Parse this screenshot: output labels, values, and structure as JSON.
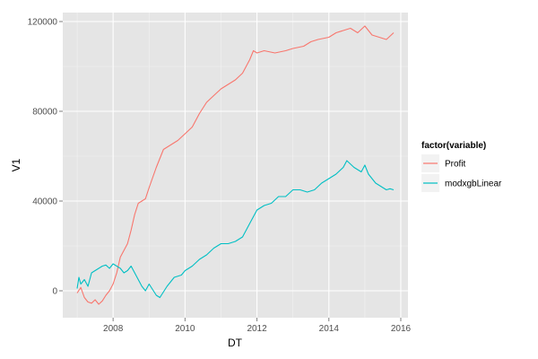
{
  "chart_data": {
    "type": "line",
    "xlabel": "DT",
    "ylabel": "V1",
    "xlim": [
      2006.6,
      2016.2
    ],
    "ylim": [
      -12000,
      124000
    ],
    "x_ticks": [
      2008,
      2010,
      2012,
      2014,
      2016
    ],
    "x_tick_labels": [
      "2008",
      "2010",
      "2012",
      "2014",
      "2016"
    ],
    "y_ticks": [
      0,
      40000,
      80000,
      120000
    ],
    "y_tick_labels": [
      "0",
      "40000",
      "80000",
      "120000"
    ],
    "grid": true,
    "background": "#e5e5e5",
    "legend": {
      "title": "factor(variable)",
      "placement": "right"
    },
    "series": [
      {
        "name": "Profit",
        "color": "#f8766d",
        "x": [
          2007.0,
          2007.1,
          2007.2,
          2007.3,
          2007.4,
          2007.5,
          2007.6,
          2007.7,
          2007.8,
          2007.9,
          2008.0,
          2008.1,
          2008.2,
          2008.3,
          2008.4,
          2008.5,
          2008.6,
          2008.7,
          2008.8,
          2008.9,
          2009.0,
          2009.2,
          2009.4,
          2009.6,
          2009.8,
          2010.0,
          2010.2,
          2010.4,
          2010.6,
          2010.8,
          2011.0,
          2011.2,
          2011.4,
          2011.6,
          2011.8,
          2011.9,
          2012.0,
          2012.2,
          2012.5,
          2012.8,
          2013.0,
          2013.3,
          2013.5,
          2013.7,
          2014.0,
          2014.2,
          2014.4,
          2014.6,
          2014.8,
          2015.0,
          2015.2,
          2015.4,
          2015.6,
          2015.8
        ],
        "y": [
          -1000,
          1500,
          -3000,
          -5000,
          -5500,
          -4000,
          -6000,
          -4500,
          -2000,
          0,
          3000,
          8000,
          15000,
          18000,
          21000,
          27000,
          34000,
          39000,
          40000,
          41000,
          46000,
          55000,
          63000,
          65000,
          67000,
          70000,
          73000,
          79000,
          84000,
          87000,
          90000,
          92000,
          94000,
          97000,
          103000,
          107000,
          106000,
          107000,
          106000,
          107000,
          108000,
          109000,
          111000,
          112000,
          113000,
          115000,
          116000,
          117000,
          115000,
          118000,
          114000,
          113000,
          112000,
          115000
        ]
      },
      {
        "name": "modxgbLinear",
        "color": "#00bfc4",
        "x": [
          2007.0,
          2007.05,
          2007.1,
          2007.2,
          2007.3,
          2007.4,
          2007.5,
          2007.6,
          2007.7,
          2007.8,
          2007.9,
          2008.0,
          2008.1,
          2008.2,
          2008.3,
          2008.4,
          2008.5,
          2008.6,
          2008.7,
          2008.8,
          2008.9,
          2009.0,
          2009.2,
          2009.3,
          2009.5,
          2009.7,
          2009.9,
          2010.0,
          2010.2,
          2010.4,
          2010.6,
          2010.8,
          2011.0,
          2011.2,
          2011.4,
          2011.6,
          2011.8,
          2012.0,
          2012.2,
          2012.4,
          2012.6,
          2012.8,
          2013.0,
          2013.2,
          2013.4,
          2013.6,
          2013.8,
          2014.0,
          2014.2,
          2014.4,
          2014.5,
          2014.7,
          2014.9,
          2015.0,
          2015.1,
          2015.2,
          2015.3,
          2015.4,
          2015.5,
          2015.6,
          2015.7,
          2015.8
        ],
        "y": [
          1000,
          6000,
          3000,
          5000,
          2000,
          8000,
          9000,
          10000,
          11000,
          11500,
          10000,
          12000,
          11000,
          10000,
          8000,
          9000,
          11000,
          8000,
          5000,
          2000,
          0,
          3000,
          -2000,
          -3000,
          2000,
          6000,
          7000,
          9000,
          11000,
          14000,
          16000,
          19000,
          21000,
          21000,
          22000,
          24000,
          30000,
          36000,
          38000,
          39000,
          42000,
          42000,
          45000,
          45000,
          44000,
          45000,
          48000,
          50000,
          52000,
          55000,
          58000,
          55000,
          53000,
          56000,
          52000,
          50000,
          48000,
          47000,
          46000,
          45000,
          45500,
          45000
        ]
      }
    ]
  }
}
